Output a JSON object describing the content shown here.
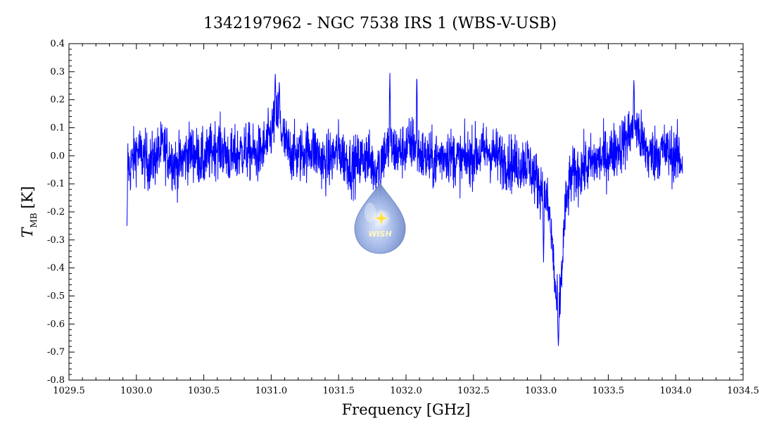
{
  "chart_data": {
    "type": "line",
    "title": "1342197962 - NGC 7538 IRS 1 (WBS-V-USB)",
    "xlabel": "Frequency [GHz]",
    "ylabel_main": "T",
    "ylabel_sub": "MB",
    "ylabel_unit": "[K]",
    "xlim": [
      1029.5,
      1034.5
    ],
    "ylim": [
      -0.8,
      0.4
    ],
    "xticks": [
      1029.5,
      1030.0,
      1030.5,
      1031.0,
      1031.5,
      1032.0,
      1032.5,
      1033.0,
      1033.5,
      1034.0,
      1034.5
    ],
    "xtick_labels": [
      "1029.5",
      "1030.0",
      "1030.5",
      "1031.0",
      "1031.5",
      "1032.0",
      "1032.5",
      "1033.0",
      "1033.5",
      "1034.0",
      "1034.5"
    ],
    "yticks": [
      0.4,
      0.3,
      0.2,
      0.1,
      0.0,
      -0.1,
      -0.2,
      -0.3,
      -0.4,
      -0.5,
      -0.6,
      -0.7,
      -0.8
    ],
    "ytick_labels": [
      "0.4",
      "0.3",
      "0.2",
      "0.1",
      "0.0",
      "-0.1",
      "-0.2",
      "-0.3",
      "-0.4",
      "-0.5",
      "-0.6",
      "-0.7",
      "-0.8"
    ],
    "grid": false,
    "series": [
      {
        "color": "#0000ff",
        "x": [
          1029.93,
          1029.95,
          1030.0,
          1030.1,
          1030.2,
          1030.3,
          1030.4,
          1030.5,
          1030.6,
          1030.7,
          1030.8,
          1030.9,
          1030.98,
          1031.02,
          1031.05,
          1031.08,
          1031.12,
          1031.2,
          1031.3,
          1031.4,
          1031.5,
          1031.6,
          1031.7,
          1031.78,
          1031.82,
          1031.88,
          1031.95,
          1032.0,
          1032.06,
          1032.08,
          1032.12,
          1032.2,
          1032.3,
          1032.4,
          1032.5,
          1032.6,
          1032.7,
          1032.8,
          1032.9,
          1032.98,
          1033.02,
          1033.06,
          1033.09,
          1033.11,
          1033.13,
          1033.15,
          1033.18,
          1033.22,
          1033.3,
          1033.4,
          1033.5,
          1033.6,
          1033.66,
          1033.7,
          1033.74,
          1033.8,
          1033.9,
          1034.0,
          1034.05
        ],
        "y": [
          0.0,
          -0.05,
          0.02,
          -0.03,
          0.03,
          -0.04,
          0.02,
          -0.02,
          0.04,
          -0.01,
          0.02,
          0.0,
          0.05,
          0.12,
          0.15,
          0.08,
          0.02,
          0.0,
          0.03,
          -0.03,
          0.02,
          -0.04,
          0.0,
          -0.05,
          0.0,
          0.03,
          0.01,
          0.03,
          0.05,
          0.02,
          0.0,
          -0.02,
          0.01,
          -0.02,
          0.0,
          0.02,
          -0.01,
          -0.03,
          -0.02,
          -0.1,
          -0.12,
          -0.2,
          -0.35,
          -0.5,
          -0.58,
          -0.45,
          -0.2,
          -0.08,
          -0.05,
          -0.02,
          0.0,
          0.04,
          0.08,
          0.12,
          0.06,
          0.0,
          0.02,
          0.0,
          -0.02
        ],
        "noise_amplitude": 0.05,
        "spikes": [
          {
            "x": 1031.03,
            "y": 0.3
          },
          {
            "x": 1031.06,
            "y": 0.27
          },
          {
            "x": 1031.88,
            "y": 0.3
          },
          {
            "x": 1032.08,
            "y": 0.3
          },
          {
            "x": 1031.81,
            "y": -0.15
          },
          {
            "x": 1033.69,
            "y": 0.28
          },
          {
            "x": 1029.93,
            "y": -0.25
          },
          {
            "x": 1033.13,
            "y": -0.68
          },
          {
            "x": 1033.02,
            "y": -0.38
          }
        ]
      }
    ]
  },
  "logo": {
    "text": "WISH",
    "star_color": "#ffe04a",
    "drop_color": "#7f99d6"
  }
}
